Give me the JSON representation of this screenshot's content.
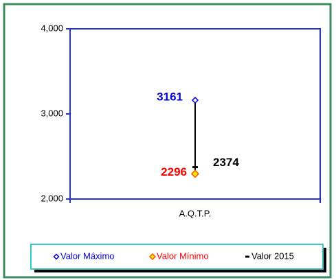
{
  "chart_data": {
    "type": "hilo",
    "categories": [
      "A.Q.T.P."
    ],
    "series": [
      {
        "name": "Valor Máximo",
        "color": "#0000dd",
        "values": [
          3161
        ]
      },
      {
        "name": "Valor Mínimo",
        "color": "#ff0000",
        "values": [
          2296
        ]
      },
      {
        "name": "Valor 2015",
        "color": "#000000",
        "values": [
          2374
        ]
      }
    ],
    "ylim": [
      2000,
      4000
    ],
    "yticks": [
      {
        "value": 2000,
        "label": "2,000"
      },
      {
        "value": 3000,
        "label": "3,000"
      },
      {
        "value": 4000,
        "label": "4,000"
      }
    ],
    "legend": "bottom"
  }
}
